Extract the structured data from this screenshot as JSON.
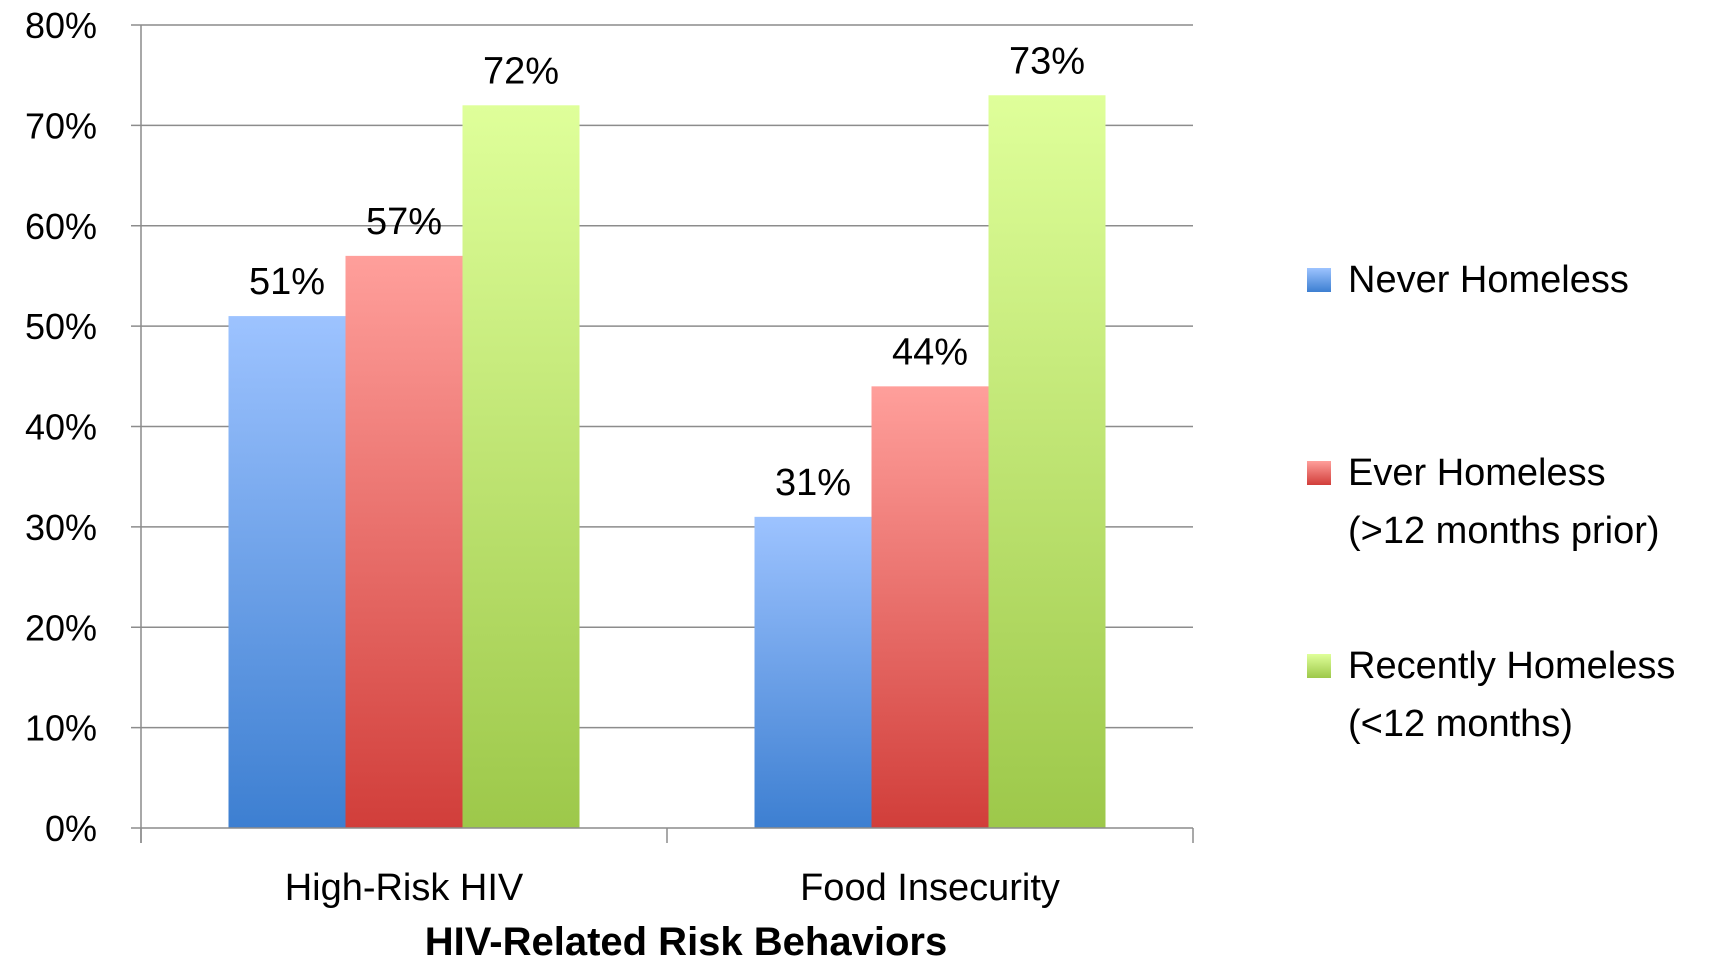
{
  "chart_data": {
    "type": "bar",
    "title": "",
    "xlabel": "HIV-Related Risk Behaviors",
    "ylabel": "",
    "ylim": [
      0,
      80
    ],
    "ytick_step": 10,
    "ytick_suffix": "%",
    "grid": true,
    "legend_position": "right",
    "categories": [
      "High-Risk HIV",
      "Food Insecurity"
    ],
    "series": [
      {
        "name": "Never Homeless",
        "label_lines": [
          "Never Homeless"
        ],
        "values": [
          51,
          31
        ],
        "data_labels": [
          "51%",
          "31%"
        ],
        "color_top": "#9dc3ff",
        "color_bottom": "#3d7fd1"
      },
      {
        "name": "Ever Homeless (>12 months prior)",
        "label_lines": [
          "Ever Homeless",
          "(>12 months prior)"
        ],
        "values": [
          57,
          44
        ],
        "data_labels": [
          "57%",
          "44%"
        ],
        "color_top": "#ff9f9b",
        "color_bottom": "#d13e3a"
      },
      {
        "name": "Recently Homeless (<12 months)",
        "label_lines": [
          "Recently Homeless",
          "(<12 months)"
        ],
        "values": [
          72,
          73
        ],
        "data_labels": [
          "72%",
          "73%"
        ],
        "color_top": "#dfff9a",
        "color_bottom": "#9dc84a"
      }
    ],
    "gridline_color": "#8c8c8c",
    "axis_color": "#8c8c8c"
  }
}
